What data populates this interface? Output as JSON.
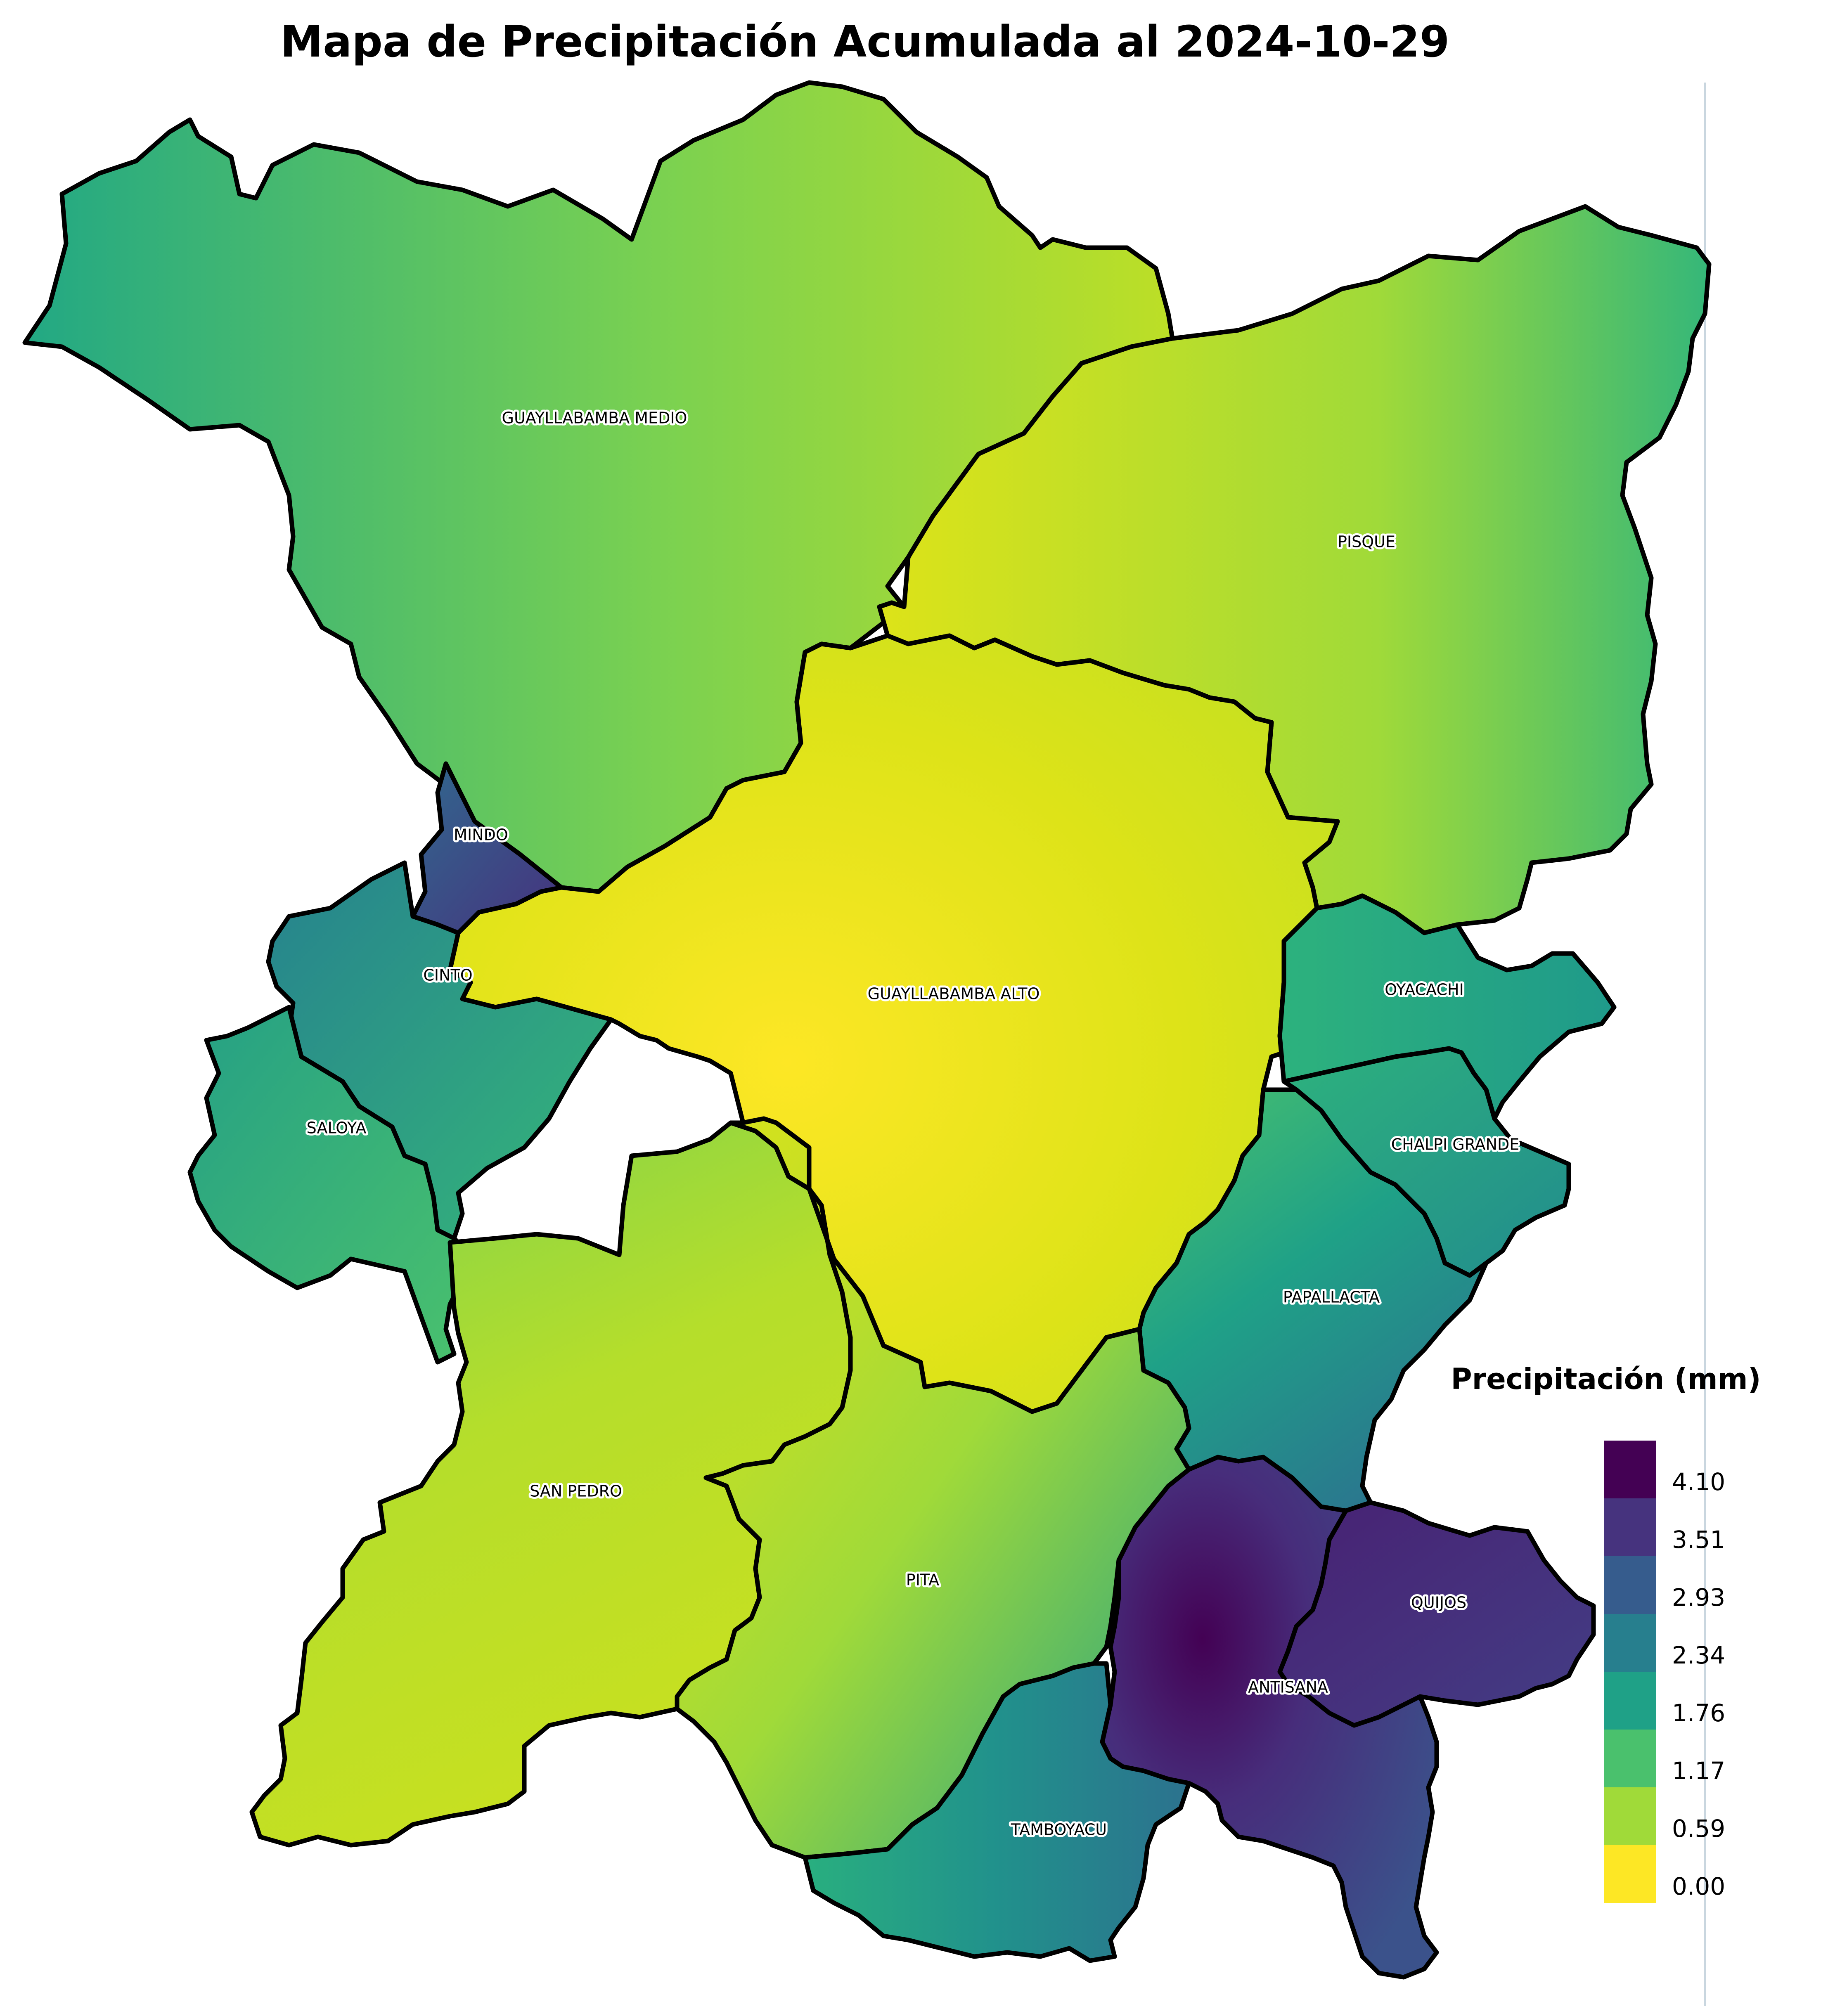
{
  "map": {
    "title": "Mapa de Precipitación Acumulada al 2024-10-29",
    "regions": [
      {
        "name": "GUAYLLABAMBA MEDIO"
      },
      {
        "name": "PISQUE"
      },
      {
        "name": "MINDO"
      },
      {
        "name": "CINTO"
      },
      {
        "name": "GUAYLLABAMBA ALTO"
      },
      {
        "name": "OYACACHI"
      },
      {
        "name": "SALOYA"
      },
      {
        "name": "CHALPI GRANDE"
      },
      {
        "name": "PAPALLACTA"
      },
      {
        "name": "SAN PEDRO"
      },
      {
        "name": "PITA"
      },
      {
        "name": "QUIJOS"
      },
      {
        "name": "ANTISANA"
      },
      {
        "name": "TAMBOYACU"
      }
    ]
  },
  "legend": {
    "title": "Precipitación (mm)",
    "items": [
      {
        "label": "4.10",
        "color": "#440154"
      },
      {
        "label": "3.51",
        "color": "#46337e"
      },
      {
        "label": "2.93",
        "color": "#365c8d"
      },
      {
        "label": "2.34",
        "color": "#277f8e"
      },
      {
        "label": "1.76",
        "color": "#1fa187"
      },
      {
        "label": "1.17",
        "color": "#4ac16d"
      },
      {
        "label": "0.59",
        "color": "#a0da39"
      },
      {
        "label": "0.00",
        "color": "#fde725"
      }
    ]
  }
}
